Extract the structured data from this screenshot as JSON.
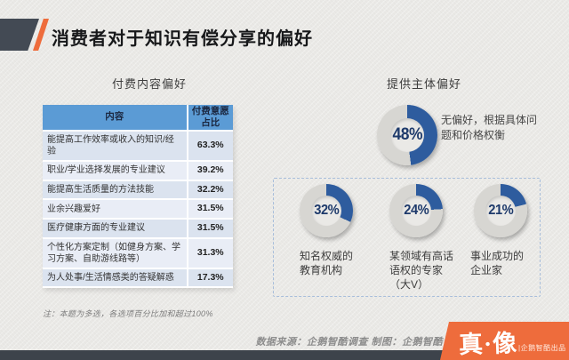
{
  "title": "消费者对于知识有偿分享的偏好",
  "left_section": {
    "heading": "付费内容偏好",
    "table": {
      "col_content": "内容",
      "col_percent": "付费意愿\n占比",
      "rows": [
        {
          "content": "能提高工作效率或收入的知识/经验",
          "percent": "63.3%"
        },
        {
          "content": "职业/学业选择发展的专业建议",
          "percent": "39.2%"
        },
        {
          "content": "能提高生活质量的方法技能",
          "percent": "32.2%"
        },
        {
          "content": "业余兴趣爱好",
          "percent": "31.5%"
        },
        {
          "content": "医疗健康方面的专业建议",
          "percent": "31.5%"
        },
        {
          "content": "个性化方案定制（如健身方案、学习方案、自助游线路等）",
          "percent": "31.3%"
        },
        {
          "content": "为人处事/生活情感类的答疑解惑",
          "percent": "17.3%"
        }
      ]
    },
    "note": "注：本题为多选，各选项百分比加和超过100%"
  },
  "right_section": {
    "heading": "提供主体偏好",
    "main_donut": {
      "value": 48,
      "label": "48%",
      "description": "无偏好，根据具体问\n题和价格权衡"
    },
    "sub_donuts": [
      {
        "value": 32,
        "label": "32%",
        "description": "知名权威的\n教育机构"
      },
      {
        "value": 24,
        "label": "24%",
        "description": "某领域有高话\n语权的专家\n（大V）"
      },
      {
        "value": 21,
        "label": "21%",
        "description": "事业成功的\n企业家"
      }
    ]
  },
  "footer": {
    "source": "数据来源：企鹅智酷调查  制图：企鹅智酷",
    "logo_text": "真·像",
    "logo_sub": "|企鹅智酷出品"
  },
  "colors": {
    "donut_blue": "#2e5c9e",
    "donut_track": "#d7d6d2",
    "table_header_blue": "#5b9bd5",
    "accent_orange": "#ee6c3c",
    "dark_slate": "#434a54",
    "percent_navy": "#1e3a6b"
  },
  "chart_data": [
    {
      "type": "table",
      "title": "付费内容偏好",
      "columns": [
        "内容",
        "付费意愿占比"
      ],
      "rows": [
        [
          "能提高工作效率或收入的知识/经验",
          "63.3%"
        ],
        [
          "职业/学业选择发展的专业建议",
          "39.2%"
        ],
        [
          "能提高生活质量的方法技能",
          "32.2%"
        ],
        [
          "业余兴趣爱好",
          "31.5%"
        ],
        [
          "医疗健康方面的专业建议",
          "31.5%"
        ],
        [
          "个性化方案定制（如健身方案、学习方案、自助游线路等）",
          "31.3%"
        ],
        [
          "为人处事/生活情感类的答疑解惑",
          "17.3%"
        ]
      ],
      "note": "注：本题为多选，各选项百分比加和超过100%"
    },
    {
      "type": "pie",
      "title": "提供主体偏好",
      "subtype": "donut-set",
      "categories": [
        "无偏好，根据具体问题和价格权衡",
        "知名权威的教育机构",
        "某领域有高话语权的专家（大V）",
        "事业成功的企业家"
      ],
      "values": [
        48,
        32,
        24,
        21
      ],
      "unit": "%",
      "legend_position": "beside-each-donut",
      "arc_start": "top",
      "arc_direction": "clockwise"
    }
  ]
}
